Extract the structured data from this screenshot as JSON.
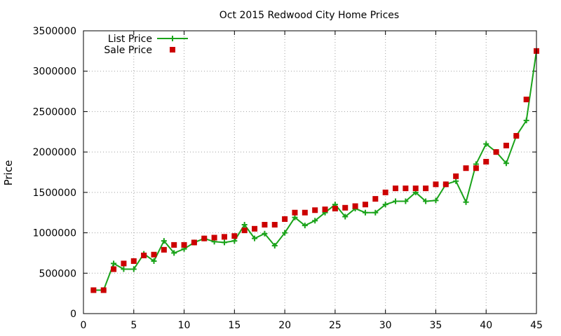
{
  "chart_data": {
    "type": "line",
    "title": "Oct 2015 Redwood City Home Prices",
    "xlabel": "",
    "ylabel": "Price",
    "xlim": [
      0,
      45
    ],
    "ylim": [
      0,
      3500000
    ],
    "xticks": [
      0,
      5,
      10,
      15,
      20,
      25,
      30,
      35,
      40,
      45
    ],
    "yticks": [
      0,
      500000,
      1000000,
      1500000,
      2000000,
      2500000,
      3000000,
      3500000
    ],
    "grid": true,
    "legend_position": "top-left",
    "x": [
      1,
      2,
      3,
      4,
      5,
      6,
      7,
      8,
      9,
      10,
      11,
      12,
      13,
      14,
      15,
      16,
      17,
      18,
      19,
      20,
      21,
      22,
      23,
      24,
      25,
      26,
      27,
      28,
      29,
      30,
      31,
      32,
      33,
      34,
      35,
      36,
      37,
      38,
      39,
      40,
      41,
      42,
      43,
      44,
      45
    ],
    "series": [
      {
        "name": "List Price",
        "style": "linespoints",
        "color": "#1aa31a",
        "values": [
          290000,
          290000,
          620000,
          550000,
          550000,
          740000,
          650000,
          900000,
          750000,
          800000,
          880000,
          930000,
          890000,
          880000,
          900000,
          1100000,
          930000,
          990000,
          840000,
          1000000,
          1190000,
          1090000,
          1150000,
          1250000,
          1350000,
          1200000,
          1300000,
          1250000,
          1250000,
          1350000,
          1390000,
          1390000,
          1500000,
          1390000,
          1400000,
          1600000,
          1640000,
          1380000,
          1850000,
          2100000,
          2000000,
          1860000,
          2200000,
          2390000,
          3250000
        ]
      },
      {
        "name": "Sale Price",
        "style": "points",
        "color": "#cc0000",
        "values": [
          290000,
          290000,
          550000,
          620000,
          650000,
          720000,
          730000,
          790000,
          850000,
          850000,
          880000,
          930000,
          940000,
          950000,
          960000,
          1030000,
          1050000,
          1100000,
          1100000,
          1170000,
          1250000,
          1250000,
          1280000,
          1290000,
          1300000,
          1310000,
          1330000,
          1350000,
          1420000,
          1500000,
          1550000,
          1550000,
          1550000,
          1550000,
          1600000,
          1600000,
          1700000,
          1800000,
          1800000,
          1880000,
          2000000,
          2080000,
          2200000,
          2650000,
          3250000
        ]
      }
    ]
  }
}
